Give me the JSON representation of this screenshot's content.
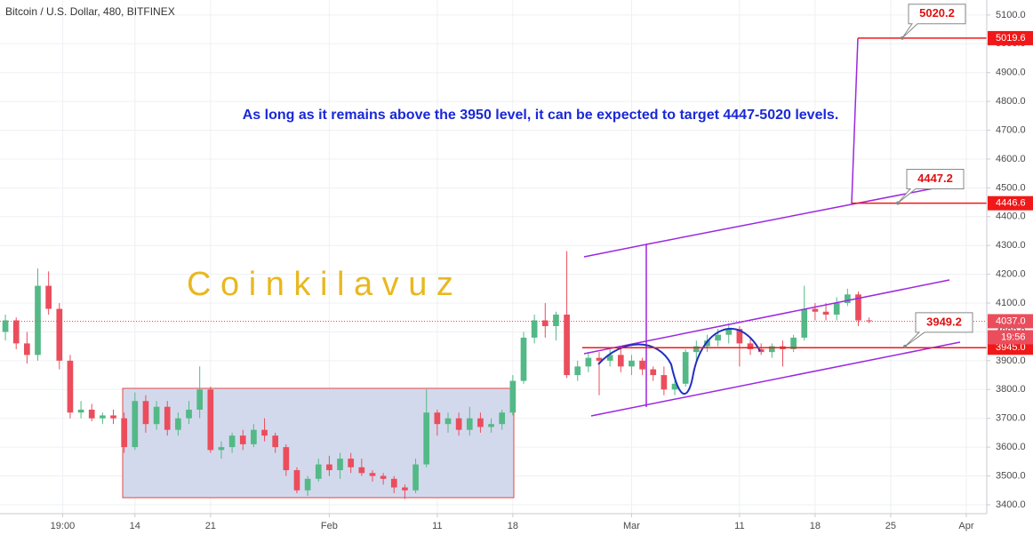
{
  "chart_data": {
    "type": "candlestick",
    "title": "Bitcoin / U.S. Dollar, 480, BITFINEX",
    "annotation": "As long as it remains above the 3950 level, it can be expected to target 4447-5020 levels.",
    "watermark": "C o i n k i l a v u z",
    "x": [
      2,
      3,
      4,
      5,
      6,
      7,
      8,
      9,
      10,
      11,
      12,
      13,
      14,
      15,
      16,
      17,
      18,
      19,
      20,
      21,
      22,
      23,
      24,
      25,
      26,
      27,
      28,
      29,
      30,
      31,
      32,
      33,
      34,
      35,
      36,
      37,
      38,
      39,
      40,
      41,
      42,
      43,
      44,
      45,
      46,
      47,
      48,
      49,
      50,
      51,
      52,
      53,
      54,
      55,
      56,
      57,
      58,
      59,
      60,
      61,
      62,
      63,
      64,
      65,
      66,
      67,
      68,
      69,
      70,
      71,
      72,
      73,
      74,
      75,
      76,
      77,
      78,
      79,
      80,
      81,
      82
    ],
    "open": [
      4000,
      4040,
      3960,
      3920,
      4160,
      4080,
      3900,
      3720,
      3730,
      3700,
      3710,
      3700,
      3600,
      3760,
      3680,
      3740,
      3660,
      3700,
      3730,
      3800,
      3590,
      3600,
      3640,
      3610,
      3660,
      3640,
      3600,
      3520,
      3450,
      3490,
      3540,
      3520,
      3560,
      3530,
      3510,
      3500,
      3490,
      3460,
      3450,
      3540,
      3720,
      3680,
      3700,
      3660,
      3700,
      3670,
      3680,
      3720,
      3830,
      3980,
      4040,
      4020,
      4060,
      3850,
      3880,
      3910,
      3900,
      3920,
      3880,
      3900,
      3870,
      3850,
      3800,
      3820,
      3930,
      3950,
      3970,
      3990,
      4010,
      3960,
      3940,
      3930,
      3950,
      3940,
      3980,
      4080,
      4070,
      4060,
      4100,
      4130,
      4040
    ],
    "high": [
      4060,
      4050,
      4000,
      4220,
      4210,
      4100,
      3920,
      3760,
      3750,
      3720,
      3730,
      3720,
      3790,
      3780,
      3760,
      3760,
      3720,
      3760,
      3880,
      3810,
      3620,
      3650,
      3660,
      3680,
      3700,
      3650,
      3610,
      3530,
      3500,
      3560,
      3570,
      3580,
      3580,
      3560,
      3520,
      3510,
      3500,
      3470,
      3560,
      3800,
      3730,
      3720,
      3720,
      3740,
      3720,
      3700,
      3730,
      3850,
      4000,
      4060,
      4100,
      4070,
      4280,
      3900,
      3930,
      3930,
      3940,
      3950,
      3920,
      3910,
      3880,
      3880,
      3830,
      3940,
      3970,
      3990,
      4010,
      4030,
      4020,
      3980,
      3960,
      3960,
      3970,
      3990,
      4160,
      4100,
      4100,
      4120,
      4150,
      4140,
      4050
    ],
    "low": [
      3970,
      3940,
      3890,
      3900,
      4060,
      3870,
      3700,
      3700,
      3690,
      3680,
      3680,
      3580,
      3590,
      3650,
      3660,
      3640,
      3640,
      3680,
      3700,
      3580,
      3560,
      3580,
      3590,
      3600,
      3620,
      3580,
      3500,
      3440,
      3430,
      3480,
      3500,
      3490,
      3510,
      3500,
      3480,
      3470,
      3440,
      3420,
      3440,
      3530,
      3640,
      3650,
      3640,
      3640,
      3650,
      3650,
      3660,
      3710,
      3820,
      3960,
      3980,
      3970,
      3840,
      3830,
      3860,
      3780,
      3880,
      3860,
      3850,
      3850,
      3830,
      3780,
      3780,
      3810,
      3900,
      3930,
      3950,
      3960,
      3880,
      3920,
      3920,
      3910,
      3880,
      3930,
      3970,
      4040,
      4040,
      4040,
      4090,
      4020,
      4030
    ],
    "close": [
      4040,
      3960,
      3920,
      4160,
      4080,
      3900,
      3720,
      3730,
      3700,
      3710,
      3700,
      3600,
      3760,
      3680,
      3740,
      3660,
      3700,
      3730,
      3800,
      3590,
      3600,
      3640,
      3610,
      3660,
      3640,
      3600,
      3520,
      3450,
      3490,
      3540,
      3520,
      3560,
      3530,
      3510,
      3500,
      3490,
      3460,
      3450,
      3540,
      3720,
      3680,
      3700,
      3660,
      3700,
      3670,
      3680,
      3720,
      3830,
      3980,
      4040,
      4020,
      4060,
      3850,
      3880,
      3910,
      3900,
      3920,
      3880,
      3900,
      3870,
      3850,
      3800,
      3820,
      3930,
      3950,
      3970,
      3990,
      4010,
      3960,
      3940,
      3930,
      3950,
      3940,
      3980,
      4080,
      4070,
      4060,
      4100,
      4130,
      4040,
      4037
    ],
    "up_color": "#53b987",
    "down_color": "#eb4d5c",
    "xlim": [
      1.5,
      92.9
    ],
    "xticks": [
      {
        "value": 7.3,
        "label": "19:00"
      },
      14,
      21,
      {
        "value": 32,
        "label": "Feb"
      },
      {
        "value": 42,
        "label": "11"
      },
      {
        "value": 49,
        "label": "18"
      },
      {
        "value": 60,
        "label": "Mar"
      },
      {
        "value": 70,
        "label": "11"
      },
      {
        "value": 77,
        "label": "18"
      },
      {
        "value": 84,
        "label": "25"
      },
      {
        "value": 91,
        "label": "Apr"
      }
    ],
    "ylim": [
      3369,
      5152
    ],
    "yticks": [
      {
        "value": 3400,
        "label": "3400.0"
      },
      {
        "value": 3500,
        "label": "3500.0"
      },
      {
        "value": 3600,
        "label": "3600.0"
      },
      {
        "value": 3700,
        "label": "3700.0"
      },
      {
        "value": 3800,
        "label": "3800.0"
      },
      {
        "value": 3900,
        "label": "3900.0"
      },
      {
        "value": 4000,
        "label": "4000.0"
      },
      {
        "value": 4100,
        "label": "4100.0"
      },
      {
        "value": 4200,
        "label": "4200.0"
      },
      {
        "value": 4300,
        "label": "4300.0"
      },
      {
        "value": 4400,
        "label": "4400.0"
      },
      {
        "value": 4500,
        "label": "4500.0"
      },
      {
        "value": 4600,
        "label": "4600.0"
      },
      {
        "value": 4700,
        "label": "4700.0"
      },
      {
        "value": 4800,
        "label": "4800.0"
      },
      {
        "value": 4900,
        "label": "4900.0"
      },
      {
        "value": 5000,
        "label": "5000.0"
      },
      {
        "value": 5100,
        "label": "5100.0"
      }
    ],
    "grid": true,
    "price_lines": [
      5019.6,
      4446.6,
      {
        "value": 3945,
        "label": "3945.0"
      }
    ],
    "last_price": {
      "value": 4037,
      "label": "4037.0"
    },
    "countdown": "19:56",
    "callouts": [
      5020.2,
      4447.2,
      3949.2
    ]
  }
}
